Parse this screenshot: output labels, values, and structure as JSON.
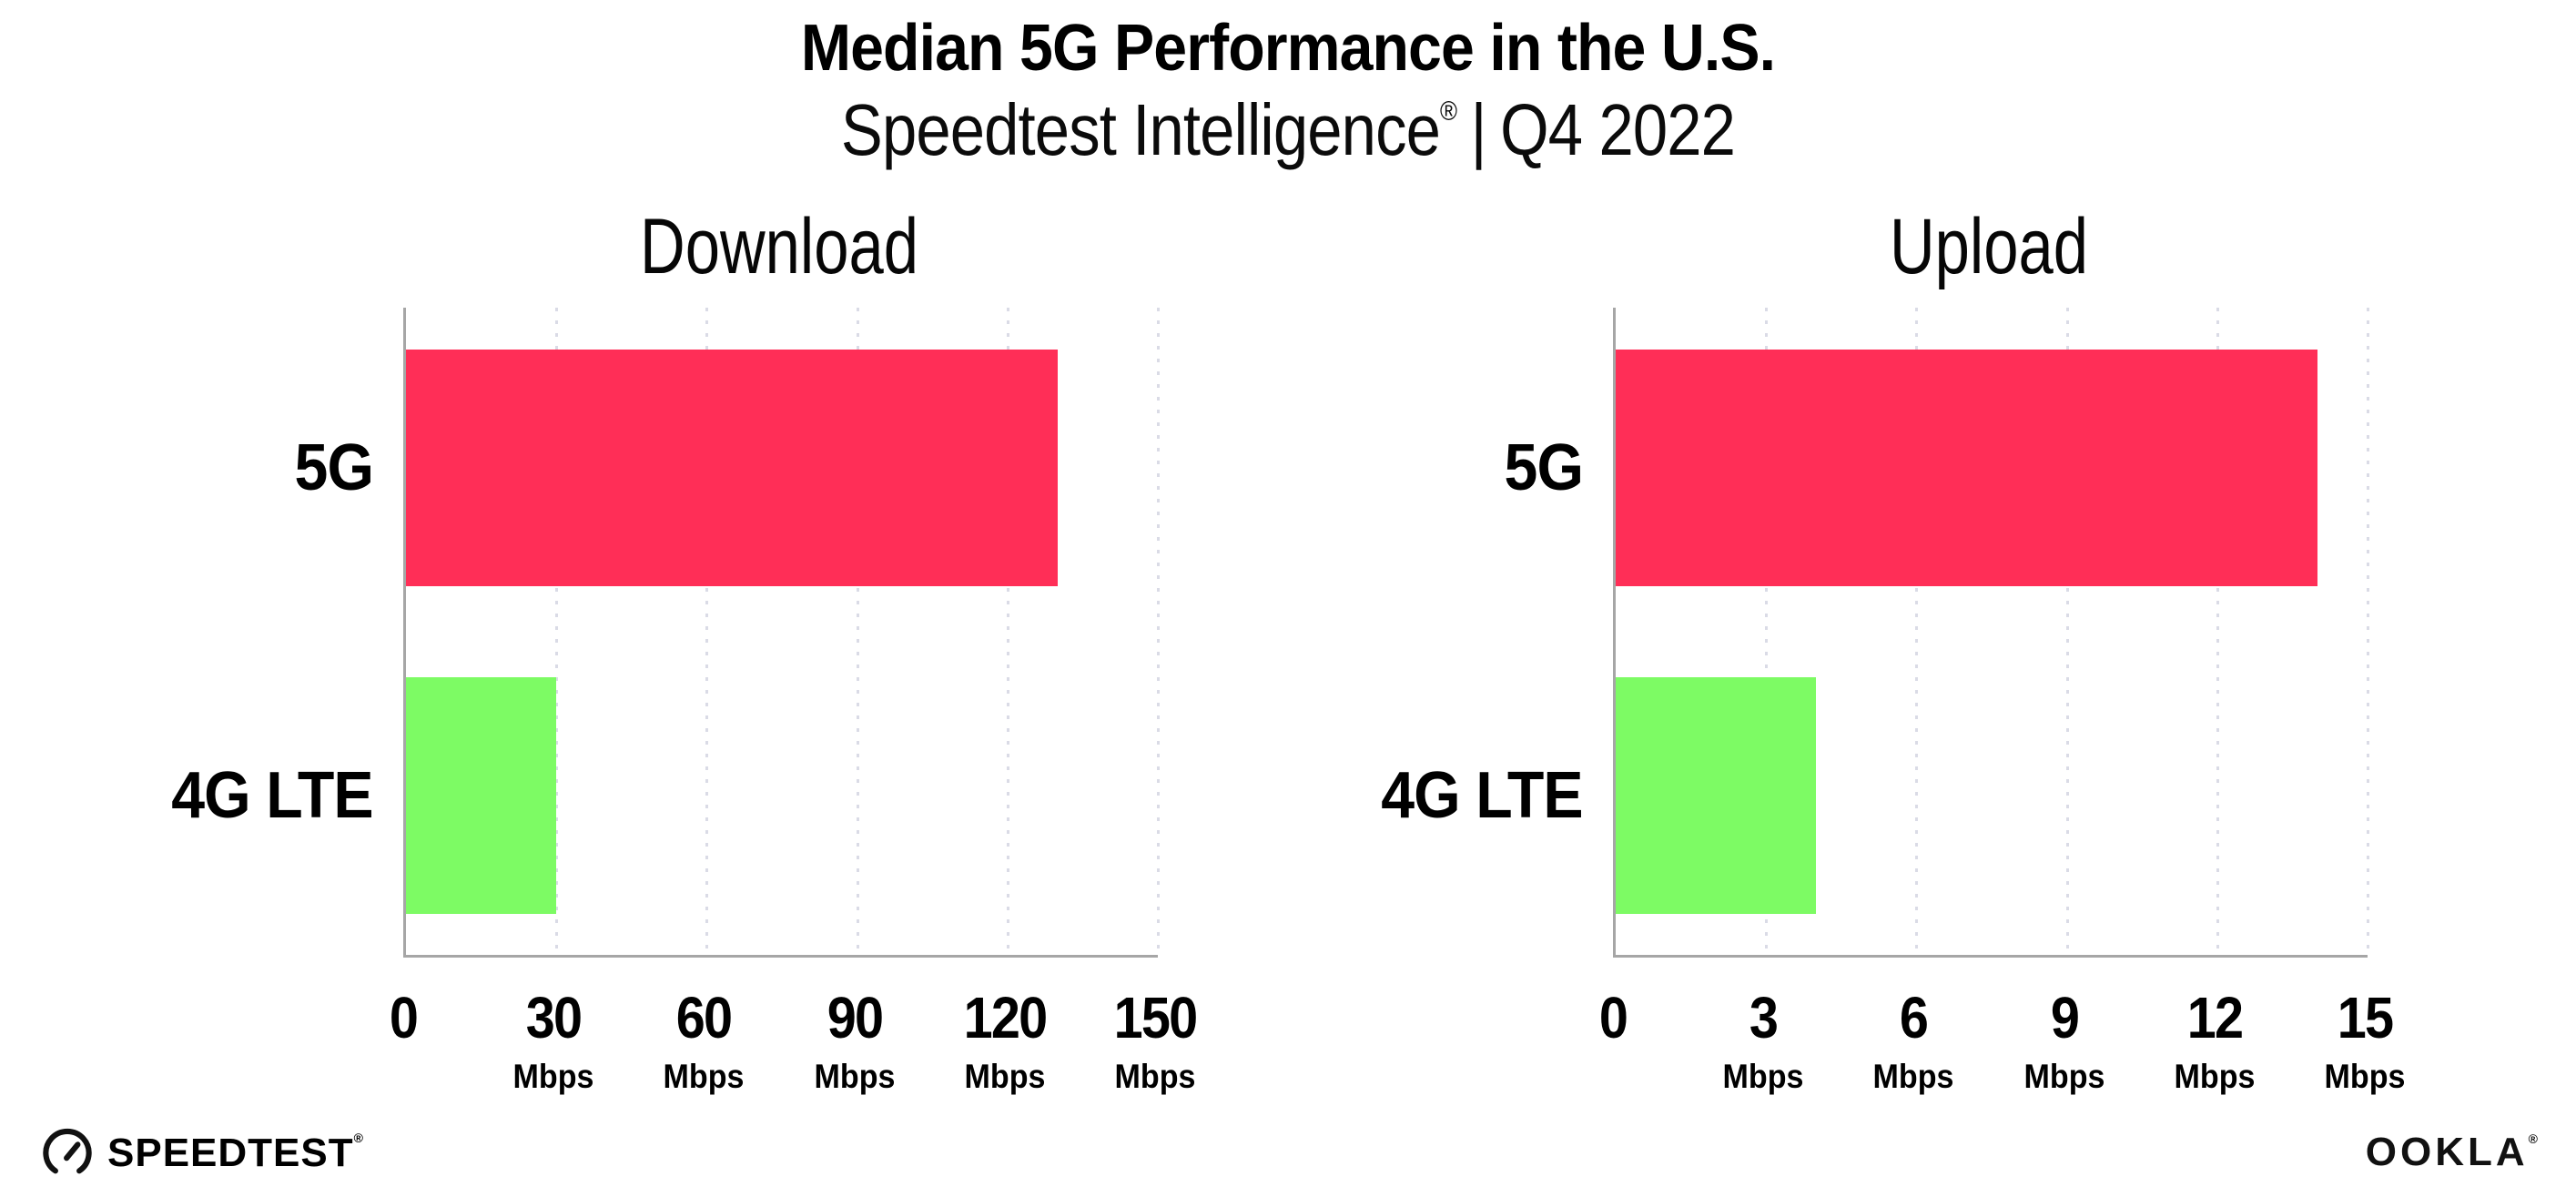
{
  "page": {
    "title": "Median 5G Performance in the U.S.",
    "subtitle": {
      "brand": "Speedtest Intelligence",
      "registered_mark": "®",
      "separator": "|",
      "period": "Q4 2022"
    }
  },
  "colors": {
    "bar_5g": "#ff2e57",
    "bar_4g_lte": "#7dfb64",
    "gridline": "#dadbe6",
    "axis": "#a6a6a6",
    "text": "#000000",
    "background": "#ffffff"
  },
  "chart_data": [
    {
      "type": "bar",
      "orientation": "horizontal",
      "title": "Download",
      "categories": [
        "5G",
        "4G LTE"
      ],
      "values": [
        130,
        30
      ],
      "unit": "Mbps",
      "xlim": [
        0,
        150
      ],
      "xticks": [
        0,
        30,
        60,
        90,
        120,
        150
      ],
      "bar_colors": [
        "#ff2e57",
        "#7dfb64"
      ],
      "grid": "dotted-vertical",
      "legend": "none"
    },
    {
      "type": "bar",
      "orientation": "horizontal",
      "title": "Upload",
      "categories": [
        "5G",
        "4G LTE"
      ],
      "values": [
        14,
        4
      ],
      "unit": "Mbps",
      "xlim": [
        0,
        15
      ],
      "xticks": [
        0,
        3,
        6,
        9,
        12,
        15
      ],
      "bar_colors": [
        "#ff2e57",
        "#7dfb64"
      ],
      "grid": "dotted-vertical",
      "legend": "none"
    }
  ],
  "footer": {
    "speedtest_label": "SPEEDTEST",
    "speedtest_mark": "®",
    "ookla_label": "OOKLA",
    "ookla_mark": "®"
  }
}
